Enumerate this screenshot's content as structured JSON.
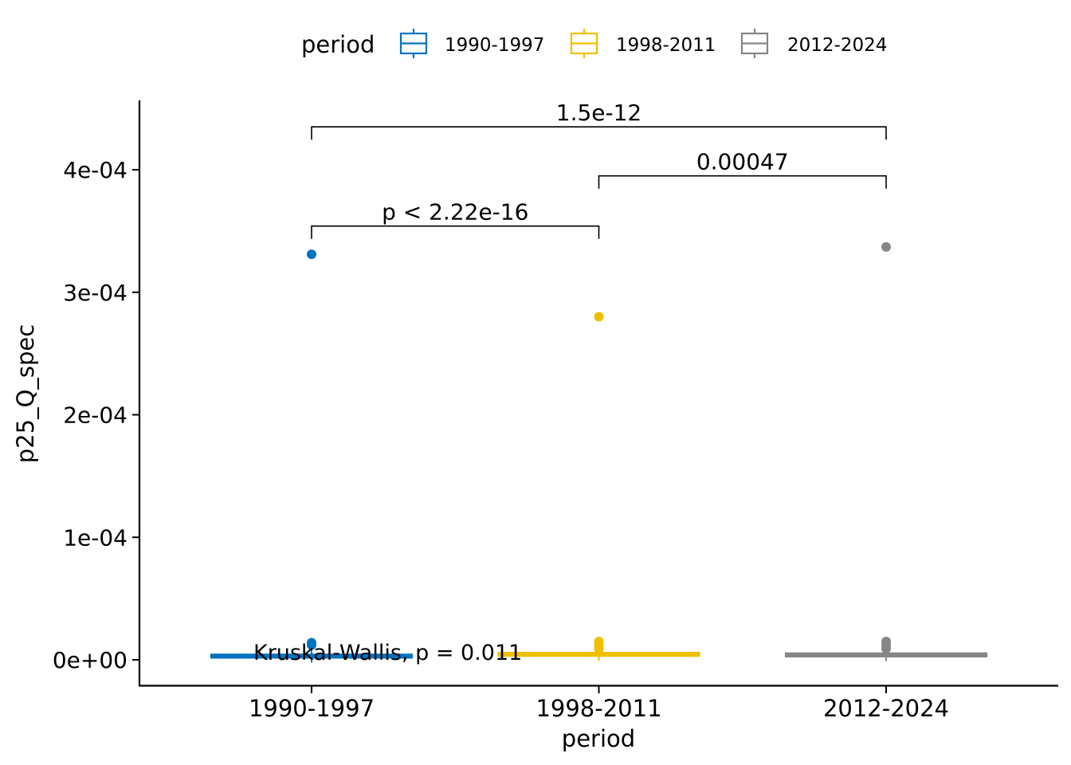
{
  "chart_data": {
    "type": "boxplot",
    "legend": {
      "title": "period",
      "position": "top",
      "entries": [
        "1990-1997",
        "1998-2011",
        "2012-2024"
      ]
    },
    "colors": {
      "1990-1997": "#0073C2",
      "1998-2011": "#EFC000",
      "2012-2024": "#868686"
    },
    "xlabel": "period",
    "ylabel": "p25_Q_spec",
    "categories": [
      "1990-1997",
      "1998-2011",
      "2012-2024"
    ],
    "y_ticks": [
      0,
      0.0001,
      0.0002,
      0.0003,
      0.0004
    ],
    "y_tick_labels": [
      "0e+00",
      "1e-04",
      "2e-04",
      "3e-04",
      "4e-04"
    ],
    "ylim": [
      -2.2e-05,
      0.000455
    ],
    "grid": false,
    "series": [
      {
        "name": "1990-1997",
        "median": 3e-06,
        "q1": 3e-06,
        "q3": 3e-06,
        "outliers": [
          0.000331,
          1.4e-05,
          1.2e-05
        ]
      },
      {
        "name": "1998-2011",
        "median": 4.5e-06,
        "q1": 4.5e-06,
        "q3": 4.5e-06,
        "outliers": [
          0.00028,
          1.5e-05,
          1.2e-05,
          9e-06
        ]
      },
      {
        "name": "2012-2024",
        "median": 4e-06,
        "q1": 4e-06,
        "q3": 4e-06,
        "outliers": [
          0.000337,
          1.5e-05,
          1.2e-05,
          9e-06
        ]
      }
    ],
    "comparisons": [
      {
        "group1": "1990-1997",
        "group2": "1998-2011",
        "label": "p < 2.22e-16",
        "y": 0.000354
      },
      {
        "group1": "1998-2011",
        "group2": "2012-2024",
        "label": "0.00047",
        "y": 0.000395
      },
      {
        "group1": "1990-1997",
        "group2": "2012-2024",
        "label": "1.5e-12",
        "y": 0.000435
      }
    ],
    "annotation": "Kruskal-Wallis, p = 0.011"
  }
}
